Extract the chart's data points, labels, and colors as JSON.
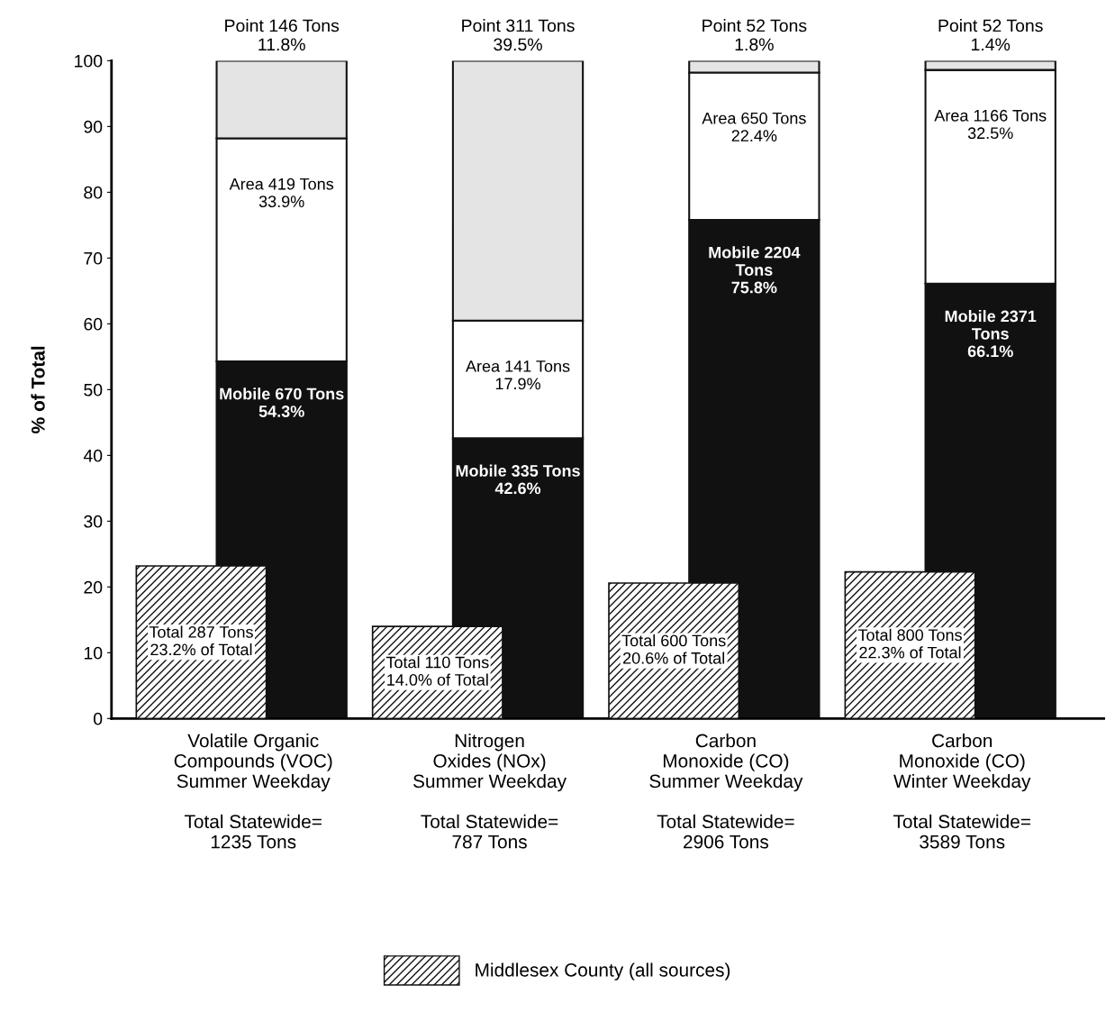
{
  "chart_data": [
    {
      "type": "bar",
      "stacked": true,
      "ylabel": "% of Total",
      "categories": [
        "Volatile Organic\nCompounds (VOC)\nSummer Weekday\n\nTotal Statewide=\n1235 Tons",
        "Nitrogen\nOxides (NOx)\nSummer Weekday\n\nTotal Statewide=\n787 Tons",
        "Carbon\nMonoxide (CO)\nSummer Weekday\n\nTotal Statewide=\n2906 Tons",
        "Carbon\nMonoxide (CO)\nWinter Weekday\n\nTotal Statewide=\n3589 Tons"
      ],
      "series": [
        {
          "color": "#111111",
          "values": [
            54.3,
            42.6,
            75.8,
            66.1
          ],
          "value_labels": [
            "Mobile 670 Tons\n54.3%",
            "Mobile 335 Tons\n42.6%",
            "Mobile 2204\nTons\n75.8%",
            "Mobile 2371\nTons\n66.1%"
          ]
        },
        {
          "color": "#ffffff",
          "values": [
            33.9,
            17.9,
            22.4,
            32.5
          ],
          "value_labels": [
            "Area 419 Tons\n33.9%",
            "Area 141 Tons\n17.9%",
            "Area 650 Tons\n22.4%",
            "Area 1166 Tons\n32.5%"
          ]
        },
        {
          "color": "#e4e4e4",
          "values": [
            11.8,
            39.5,
            1.8,
            1.4
          ],
          "value_labels": [
            "Point 146 Tons\n11.8%",
            "Point 311 Tons\n39.5%",
            "Point 52 Tons\n1.8%",
            "Point 52 Tons\n1.4%"
          ]
        }
      ],
      "ylim": [
        0,
        100
      ],
      "yticks": [
        0,
        10,
        20,
        30,
        40,
        50,
        60,
        70,
        80,
        90,
        100
      ],
      "grid": false
    },
    {
      "type": "bar",
      "tick_labels": false,
      "categories": [
        null,
        null,
        null,
        null
      ],
      "series": [
        {
          "name": "Middlesex County (all sources)",
          "color": "#111111",
          "values": [
            23.2,
            14.0,
            20.6,
            22.3
          ],
          "value_labels": [
            "Total 287 Tons\n23.2% of Total",
            "Total 110 Tons\n14.0% of Total",
            "Total 600 Tons\n20.6% of Total",
            "Total 800 Tons\n22.3% of Total"
          ]
        }
      ],
      "ylim": [
        0,
        100
      ],
      "yticks": [
        0,
        10,
        20,
        30,
        40,
        50,
        60,
        70,
        80,
        90,
        100
      ],
      "grid": false,
      "legend": "bottom"
    }
  ]
}
